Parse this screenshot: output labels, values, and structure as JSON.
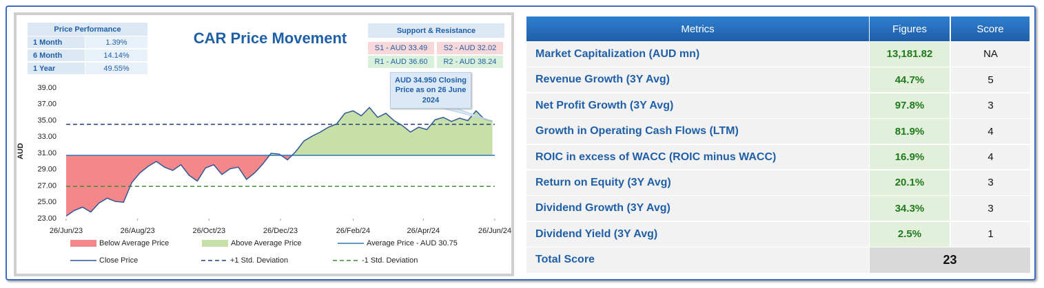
{
  "price_performance": {
    "title": "Price Performance",
    "rows": [
      [
        "1 Month",
        "1.39%"
      ],
      [
        "6 Month",
        "14.14%"
      ],
      [
        "1 Year",
        "49.55%"
      ]
    ]
  },
  "support_resistance": {
    "title": "Support & Resistance",
    "items": [
      "S1 - AUD 33.49",
      "S2 - AUD 32.02",
      "R1 - AUD 36.60",
      "R2 - AUD 38.24"
    ]
  },
  "chart_data": {
    "type": "line",
    "title": "CAR Price Movement",
    "y_label": "AUD",
    "annotation": "AUD 34.950 Closing Price as on 26 June 2024",
    "x": [
      "2023-06-26",
      "2023-07-03",
      "2023-07-10",
      "2023-07-17",
      "2023-07-24",
      "2023-07-31",
      "2023-08-07",
      "2023-08-14",
      "2023-08-21",
      "2023-08-28",
      "2023-09-04",
      "2023-09-11",
      "2023-09-18",
      "2023-09-25",
      "2023-10-02",
      "2023-10-09",
      "2023-10-16",
      "2023-10-23",
      "2023-10-30",
      "2023-11-06",
      "2023-11-13",
      "2023-11-20",
      "2023-11-27",
      "2023-12-04",
      "2023-12-11",
      "2023-12-18",
      "2023-12-25",
      "2024-01-01",
      "2024-01-08",
      "2024-01-15",
      "2024-01-22",
      "2024-01-29",
      "2024-02-05",
      "2024-02-12",
      "2024-02-19",
      "2024-02-26",
      "2024-03-04",
      "2024-03-11",
      "2024-03-18",
      "2024-03-25",
      "2024-04-01",
      "2024-04-08",
      "2024-04-15",
      "2024-04-22",
      "2024-04-29",
      "2024-05-06",
      "2024-05-13",
      "2024-05-20",
      "2024-05-27",
      "2024-06-03",
      "2024-06-10",
      "2024-06-17",
      "2024-06-24"
    ],
    "series": [
      {
        "name": "Close Price",
        "color": "#2f5597",
        "values": [
          23.3,
          24.0,
          24.4,
          23.8,
          24.9,
          25.5,
          25.1,
          25.0,
          27.4,
          28.6,
          29.4,
          30.0,
          29.3,
          28.9,
          29.6,
          28.3,
          27.6,
          29.2,
          29.6,
          28.4,
          29.1,
          29.3,
          27.8,
          28.6,
          29.7,
          31.0,
          30.9,
          30.2,
          31.2,
          32.5,
          33.1,
          33.6,
          34.2,
          34.6,
          35.9,
          36.2,
          35.6,
          36.6,
          35.4,
          35.9,
          35.0,
          34.4,
          33.6,
          34.2,
          33.9,
          35.1,
          35.4,
          34.9,
          35.3,
          35.0,
          36.2,
          35.2,
          34.95
        ]
      }
    ],
    "reference_lines": [
      {
        "name": "Average Price - AUD 30.75",
        "value": 30.75,
        "color": "#2e75b6",
        "dashed": false
      },
      {
        "name": "+1 Std. Deviation",
        "value": 34.55,
        "color": "#203f7a",
        "dashed": true
      },
      {
        "name": "-1 Std. Deviation",
        "value": 26.95,
        "color": "#3a8a2e",
        "dashed": true
      }
    ],
    "fills": [
      {
        "name": "Below Average Price",
        "color": "#f4878a"
      },
      {
        "name": "Above Average Price",
        "color": "#c6e0a8"
      }
    ],
    "xlim": [
      "2023-06-26",
      "2024-06-26"
    ],
    "xticks": [
      {
        "value": "2023-06-26",
        "label": "26/Jun/23"
      },
      {
        "value": "2023-08-26",
        "label": "26/Aug/23"
      },
      {
        "value": "2023-10-26",
        "label": "26/Oct/23"
      },
      {
        "value": "2023-12-26",
        "label": "26/Dec/23"
      },
      {
        "value": "2024-02-26",
        "label": "26/Feb/24"
      },
      {
        "value": "2024-04-26",
        "label": "26/Apr/24"
      },
      {
        "value": "2024-06-26",
        "label": "26/Jun/24"
      }
    ],
    "ylim": [
      23,
      39
    ],
    "yticks": [
      {
        "value": 23,
        "label": "23.00"
      },
      {
        "value": 25,
        "label": "25.00"
      },
      {
        "value": 27,
        "label": "27.00"
      },
      {
        "value": 29,
        "label": "29.00"
      },
      {
        "value": 31,
        "label": "31.00"
      },
      {
        "value": 33,
        "label": "33.00"
      },
      {
        "value": 35,
        "label": "35.00"
      },
      {
        "value": 37,
        "label": "37.00"
      },
      {
        "value": 39,
        "label": "39.00"
      }
    ],
    "grid": false
  },
  "metrics_table": {
    "header": [
      "Metrics",
      "Figures",
      "Score"
    ],
    "rows": [
      [
        "Market Capitalization (AUD mn)",
        "13,181.82",
        "NA"
      ],
      [
        "Revenue Growth (3Y Avg)",
        "44.7%",
        "5"
      ],
      [
        "Net Profit Growth (3Y Avg)",
        "97.8%",
        "3"
      ],
      [
        "Growth in Operating Cash Flows (LTM)",
        "81.9%",
        "4"
      ],
      [
        "ROIC in excess of WACC (ROIC minus WACC)",
        "16.9%",
        "4"
      ],
      [
        "Return on Equity (3Y Avg)",
        "20.1%",
        "3"
      ],
      [
        "Dividend Growth (3Y Avg)",
        "34.3%",
        "3"
      ],
      [
        "Dividend Yield (3Y Avg)",
        "2.5%",
        "1"
      ]
    ],
    "total": [
      "Total Score",
      "23"
    ]
  }
}
